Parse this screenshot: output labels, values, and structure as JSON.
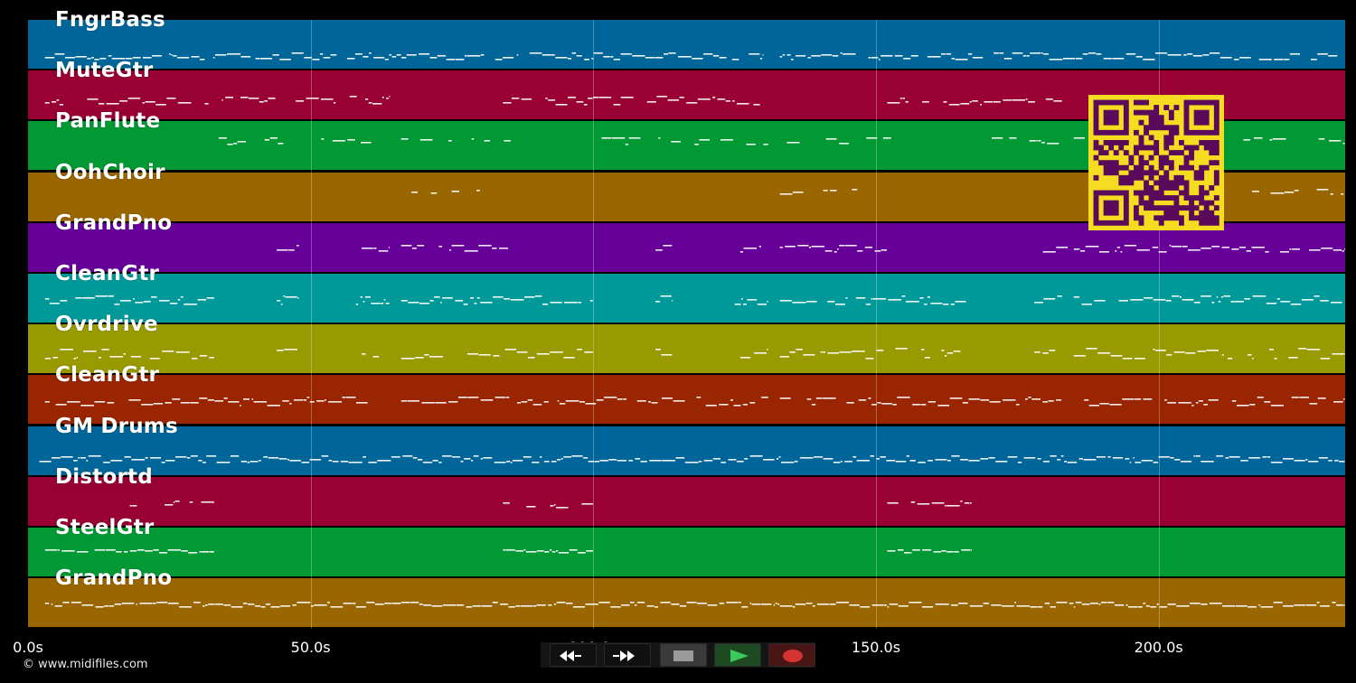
{
  "tracks": [
    {
      "name": "FngrBass",
      "color": "#006699",
      "note_pattern": "bass"
    },
    {
      "name": "MuteGtr",
      "color": "#990033",
      "note_pattern": "mute"
    },
    {
      "name": "PanFlute",
      "color": "#009933",
      "note_pattern": "flute"
    },
    {
      "name": "OohChoir",
      "color": "#996600",
      "note_pattern": "choir"
    },
    {
      "name": "GrandPno",
      "color": "#660099",
      "note_pattern": "piano"
    },
    {
      "name": "CleanGtr",
      "color": "#009999",
      "note_pattern": "clean"
    },
    {
      "name": "Ovrdrive",
      "color": "#999900",
      "note_pattern": "overdrive"
    },
    {
      "name": "CleanGtr",
      "color": "#992600",
      "note_pattern": "clean2"
    },
    {
      "name": "GM Drums",
      "color": "#006699",
      "note_pattern": "drums"
    },
    {
      "name": "Distortd",
      "color": "#990033",
      "note_pattern": "distort"
    },
    {
      "name": "SteelGtr",
      "color": "#009933",
      "note_pattern": "steel"
    },
    {
      "name": "GrandPno",
      "color": "#996600",
      "note_pattern": "piano2"
    }
  ],
  "time_axis": {
    "unit": "s",
    "ticks": [
      "0.0s",
      "50.0s",
      "100.0s",
      "150.0s",
      "200.0s"
    ],
    "tick_values": [
      0,
      50,
      100,
      150,
      200
    ],
    "max_seconds": 233
  },
  "copyright": "© www.midifiles.com",
  "transport": {
    "rewind_icon": "rewind-icon",
    "fast_forward_icon": "fast-forward-icon",
    "stop_icon": "stop-icon",
    "play_icon": "play-icon",
    "record_icon": "record-icon",
    "play_color": "#3cc85a",
    "record_color": "#d63333"
  },
  "qr_code": {
    "foreground": "#5a0a5a",
    "background": "#f5dc20"
  },
  "colors": {
    "background": "#000000",
    "note": "#ffffff",
    "grid": "#888888"
  }
}
